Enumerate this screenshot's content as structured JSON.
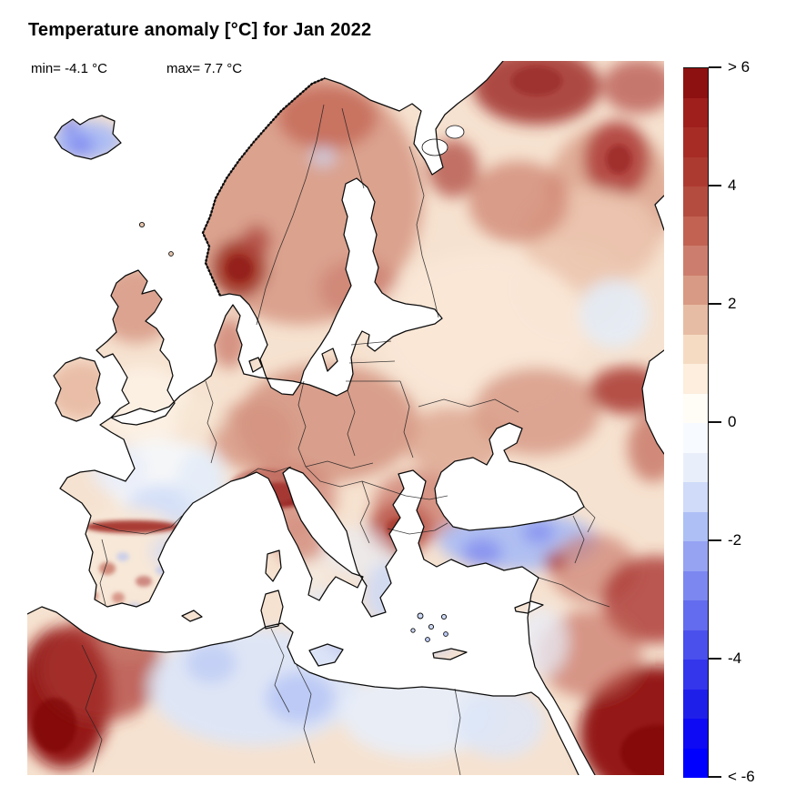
{
  "header": {
    "title": "Temperature anomaly [°C] for Jan 2022",
    "min_label": "min= -4.1 °C",
    "max_label": "max= 7.7 °C"
  },
  "colorbar": {
    "unit": "°C",
    "ticks": [
      {
        "label": "> 6",
        "value": 6
      },
      {
        "label": "4",
        "value": 4
      },
      {
        "label": "2",
        "value": 2
      },
      {
        "label": "0",
        "value": 0
      },
      {
        "label": "-2",
        "value": -2
      },
      {
        "label": "-4",
        "value": -4
      },
      {
        "label": "< -6",
        "value": -6
      }
    ],
    "value_range": [
      -6,
      6
    ],
    "segment_step": 0.5,
    "segment_colors": [
      "#8e1111",
      "#9e1f1c",
      "#a72c26",
      "#ad3a31",
      "#b44c40",
      "#c16253",
      "#cd7d6d",
      "#d89a84",
      "#e7bca4",
      "#f6dbc3",
      "#fdeedd",
      "#fffdf6",
      "#f7fbff",
      "#e9effa",
      "#cfdbf8",
      "#aebff6",
      "#96a3f3",
      "#7c87f0",
      "#636bee",
      "#4a50ec",
      "#3336eb",
      "#1f1fea",
      "#0e0af4",
      "#0000ff"
    ]
  },
  "map": {
    "sea_color": "#ffffff",
    "land_base_color": "#f6e2d0",
    "coast_color": "#0b0b0b",
    "regions": [
      {
        "name": "Iceland",
        "anomaly_c": -2
      },
      {
        "name": "Southern Norway",
        "anomaly_c": 5
      },
      {
        "name": "Scandinavia / Finland",
        "anomaly_c": 2.5
      },
      {
        "name": "Northeast Russia",
        "anomaly_c": 4.5
      },
      {
        "name": "Central Russia",
        "anomaly_c": 1
      },
      {
        "name": "Eastern Europe",
        "anomaly_c": 2.5
      },
      {
        "name": "Alps",
        "anomaly_c": 6
      },
      {
        "name": "Pyrenees",
        "anomaly_c": 5
      },
      {
        "name": "British Isles",
        "anomaly_c": 1.5
      },
      {
        "name": "Western France",
        "anomaly_c": -0.5
      },
      {
        "name": "Iberia",
        "anomaly_c": 0.5
      },
      {
        "name": "Turkey",
        "anomaly_c": -2
      },
      {
        "name": "Greece / Aegean",
        "anomaly_c": -1.5
      },
      {
        "name": "North Africa coast",
        "anomaly_c": -1
      },
      {
        "name": "Southern Morocco",
        "anomaly_c": 6
      },
      {
        "name": "Arabia / Middle East",
        "anomaly_c": 6
      }
    ],
    "blobs": [
      [
        300,
        150,
        135,
        140,
        "#d69682",
        0.85,
        "soft"
      ],
      [
        640,
        150,
        70,
        80,
        "#d6977f",
        0.7,
        "soft"
      ],
      [
        600,
        250,
        60,
        50,
        "#eed3bd",
        0.8,
        "soft"
      ],
      [
        233,
        228,
        30,
        32,
        "#9c2a20",
        0.9,
        "soft"
      ],
      [
        252,
        198,
        16,
        18,
        "#b24a42",
        0.8,
        "soft"
      ],
      [
        330,
        62,
        55,
        35,
        "#c2604e",
        0.7,
        "soft"
      ],
      [
        365,
        250,
        45,
        32,
        "#cd7f70",
        0.7,
        "soft"
      ],
      [
        325,
        105,
        14,
        11,
        "#ccd9f7",
        0.7,
        "soft"
      ],
      [
        560,
        28,
        70,
        42,
        "#a02d28",
        0.85,
        "soft"
      ],
      [
        648,
        108,
        36,
        42,
        "#aa3530",
        0.8,
        "soft"
      ],
      [
        672,
        28,
        40,
        30,
        "#b24a42",
        0.7,
        "soft"
      ],
      [
        620,
        195,
        75,
        55,
        "#ecc7b0",
        0.9,
        "soft"
      ],
      [
        540,
        155,
        55,
        45,
        "#cf8470",
        0.75,
        "soft"
      ],
      [
        468,
        118,
        28,
        32,
        "#b04a40",
        0.75,
        "soft"
      ],
      [
        500,
        295,
        115,
        85,
        "#fae7d6",
        0.95,
        "soft"
      ],
      [
        645,
        278,
        38,
        38,
        "#e4edf9",
        0.85,
        "soft"
      ],
      [
        560,
        385,
        70,
        48,
        "#d69682",
        0.8,
        "soft"
      ],
      [
        660,
        362,
        42,
        26,
        "#a93530",
        0.85,
        "soft"
      ],
      [
        688,
        425,
        28,
        38,
        "#c16455",
        0.7,
        "soft"
      ],
      [
        330,
        398,
        100,
        65,
        "#d49480",
        0.85,
        "soft"
      ],
      [
        248,
        412,
        45,
        38,
        "#d49480",
        0.8,
        "soft"
      ],
      [
        285,
        480,
        55,
        38,
        "#cd7f70",
        0.7,
        "soft"
      ],
      [
        410,
        514,
        36,
        28,
        "#b04238",
        0.85,
        "soft"
      ],
      [
        432,
        488,
        52,
        38,
        "#c16455",
        0.6,
        "soft"
      ],
      [
        362,
        540,
        38,
        28,
        "#e8eef9",
        0.6,
        "soft"
      ],
      [
        470,
        418,
        55,
        38,
        "#d99c86",
        0.7,
        "soft"
      ],
      [
        120,
        268,
        45,
        42,
        "#d49480",
        0.8,
        "soft"
      ],
      [
        128,
        378,
        52,
        42,
        "#fdf2e6",
        0.9,
        "soft"
      ],
      [
        60,
        362,
        38,
        32,
        "#e6b49c",
        0.8,
        "soft"
      ],
      [
        150,
        458,
        65,
        42,
        "#f5f8fd",
        0.9,
        "soft"
      ],
      [
        100,
        448,
        32,
        28,
        "#e8eef9",
        0.75,
        "soft"
      ],
      [
        148,
        492,
        40,
        26,
        "#ccd9f7",
        0.8,
        "soft"
      ],
      [
        192,
        468,
        28,
        42,
        "#dfe9f8",
        0.7,
        "soft"
      ],
      [
        110,
        545,
        70,
        55,
        "#f8e8d8",
        0.95,
        "soft"
      ],
      [
        160,
        540,
        24,
        18,
        "#ccd9f7",
        0.65,
        "soft"
      ],
      [
        300,
        530,
        28,
        22,
        "#cd7f70",
        0.7,
        "soft"
      ],
      [
        312,
        575,
        18,
        26,
        "#f5ece2",
        0.8,
        "soft"
      ],
      [
        330,
        650,
        28,
        16,
        "#aabcf6",
        0.85,
        "soft"
      ],
      [
        325,
        595,
        18,
        14,
        "#dde6f8",
        0.7,
        "soft"
      ],
      [
        400,
        585,
        30,
        35,
        "#ccd9f7",
        0.85,
        "soft"
      ],
      [
        445,
        625,
        30,
        25,
        "#b9c8f7",
        0.8,
        "soft"
      ],
      [
        540,
        528,
        88,
        32,
        "#a8bbf5",
        0.9,
        "soft"
      ],
      [
        500,
        540,
        22,
        15,
        "#7a84f0",
        0.7,
        "soft"
      ],
      [
        562,
        518,
        18,
        13,
        "#7a84f0",
        0.65,
        "soft"
      ],
      [
        622,
        558,
        48,
        38,
        "#cd7f70",
        0.7,
        "soft"
      ],
      [
        690,
        592,
        58,
        48,
        "#aa3530",
        0.8,
        "soft"
      ],
      [
        692,
        740,
        85,
        75,
        "#8e1111",
        0.95,
        "soft"
      ],
      [
        618,
        652,
        58,
        48,
        "#c16455",
        0.6,
        "soft"
      ],
      [
        565,
        638,
        28,
        38,
        "#e8eef9",
        0.75,
        "soft"
      ],
      [
        580,
        550,
        12,
        10,
        "#aa3530",
        0.8,
        "soft"
      ],
      [
        40,
        700,
        52,
        78,
        "#8e1111",
        0.95,
        "soft"
      ],
      [
        82,
        668,
        68,
        58,
        "#aa3530",
        0.7,
        "soft"
      ],
      [
        112,
        638,
        28,
        18,
        "#cd7f70",
        0.6,
        "soft"
      ],
      [
        250,
        688,
        115,
        65,
        "#dde6f8",
        0.95,
        "soft"
      ],
      [
        300,
        700,
        38,
        28,
        "#aabcf6",
        0.65,
        "soft"
      ],
      [
        202,
        662,
        28,
        22,
        "#aabcf6",
        0.5,
        "soft"
      ],
      [
        430,
        718,
        85,
        48,
        "#e8eef9",
        0.9,
        "soft"
      ],
      [
        520,
        728,
        48,
        38,
        "#dde6f8",
        0.85,
        "soft"
      ],
      [
        65,
        88,
        40,
        22,
        "#aabcf6",
        0.95,
        "soft"
      ],
      [
        58,
        92,
        16,
        11,
        "#7a84f0",
        0.85,
        "soft"
      ],
      [
        46,
        70,
        9,
        7,
        "#474cec",
        0.8,
        "soft"
      ],
      [
        222,
        310,
        20,
        28,
        "#cd7f70",
        0.8,
        "soft"
      ],
      [
        190,
        390,
        28,
        22,
        "#f7e6d4",
        0.85,
        "soft"
      ],
      [
        278,
        477,
        32,
        14,
        "#8e1111",
        0.85,
        "fine"
      ],
      [
        262,
        468,
        40,
        20,
        "#b24a42",
        0.5,
        "fine"
      ],
      [
        115,
        512,
        52,
        7,
        "#9c2016",
        0.85,
        "fine"
      ],
      [
        88,
        558,
        9,
        7,
        "#c16455",
        0.7,
        "fine"
      ],
      [
        70,
        588,
        8,
        6,
        "#b85448",
        0.65,
        "fine"
      ],
      [
        128,
        572,
        9,
        6,
        "#b24a42",
        0.6,
        "fine"
      ],
      [
        100,
        590,
        7,
        6,
        "#c16455",
        0.6,
        "fine"
      ],
      [
        62,
        540,
        7,
        5,
        "#cd7f70",
        0.6,
        "fine"
      ],
      [
        105,
        545,
        7,
        5,
        "#aabcf6",
        0.55,
        "fine"
      ],
      [
        148,
        560,
        7,
        5,
        "#aabcf6",
        0.5,
        "fine"
      ],
      [
        85,
        610,
        8,
        5,
        "#c16455",
        0.5,
        "fine"
      ],
      [
        118,
        600,
        7,
        5,
        "#aabcf6",
        0.45,
        "fine"
      ],
      [
        233,
        228,
        14,
        14,
        "#8e1111",
        0.6,
        "fine"
      ],
      [
        650,
        108,
        14,
        16,
        "#8e1111",
        0.5,
        "fine"
      ],
      [
        560,
        22,
        28,
        16,
        "#8e1111",
        0.45,
        "fine"
      ],
      [
        410,
        514,
        16,
        12,
        "#9c2016",
        0.5,
        "fine"
      ],
      [
        692,
        760,
        40,
        30,
        "#7a0a0a",
        0.6,
        "fine"
      ],
      [
        30,
        730,
        24,
        30,
        "#7a0a0a",
        0.6,
        "fine"
      ]
    ]
  }
}
